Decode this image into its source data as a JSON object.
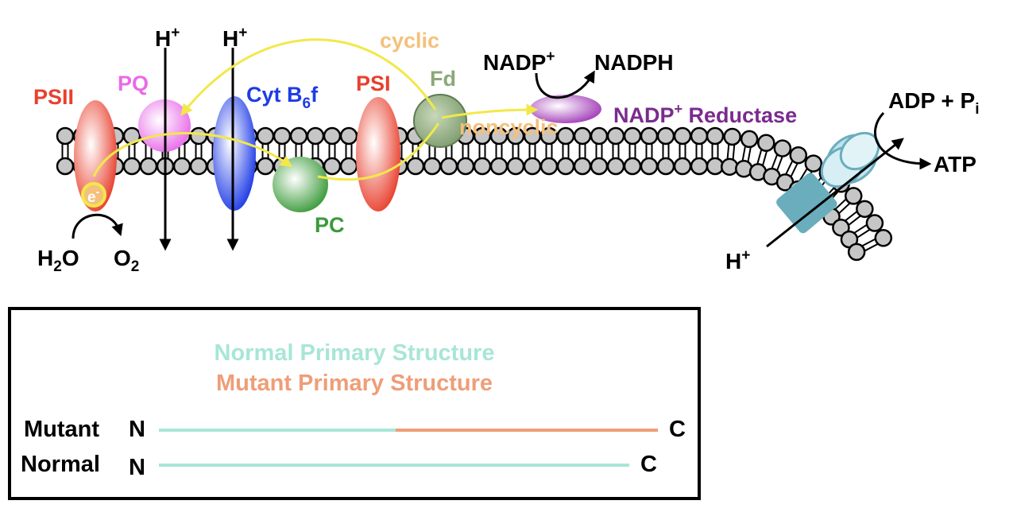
{
  "labels": {
    "psii": "PSII",
    "pq": "PQ",
    "h_left": "H",
    "h_mid": "H",
    "h_atp": "H",
    "plus": "+",
    "cyt": "Cyt B",
    "cyt_sub": "6",
    "cyt_end": "f",
    "psi": "PSI",
    "fd": "Fd",
    "cyclic": "cyclic",
    "noncyclic": "noncyclic",
    "pc": "PC",
    "electron": "e",
    "electron_sup": "-",
    "h2o_h": "H",
    "h2o_sub": "2",
    "h2o_o": "O",
    "o2_o": "O",
    "o2_sub": "2",
    "nadp": "NADP",
    "nadph": "NADPH",
    "reductase": "NADP",
    "reductase_end": " Reductase",
    "adp": "ADP + P",
    "adp_sub": "i",
    "atp": "ATP"
  },
  "colors": {
    "psii": "#e8402e",
    "pq": "#e86be8",
    "cyt": "#1e3be6",
    "psi": "#e8402e",
    "fd": "#8aa878",
    "pc": "#3a9a3a",
    "cyclic": "#f5c07a",
    "electron_path": "#f2e84a",
    "reductase": "#7a2b8e",
    "synthase": "#6aaebe",
    "normal": "#a8e6d6",
    "mutant": "#ee9e78"
  },
  "legend": {
    "normal_title": "Normal Primary Structure",
    "mutant_title": "Mutant Primary Structure",
    "mutant_label": "Mutant",
    "normal_label": "Normal",
    "n_terminus": "N",
    "c_terminus": "C"
  }
}
